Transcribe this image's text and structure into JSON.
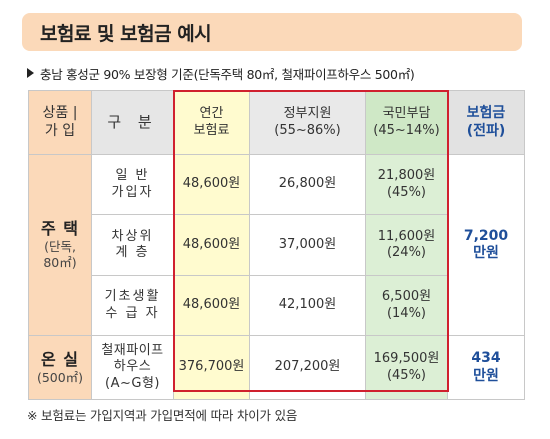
{
  "title": "보험료 및 보험금 예시",
  "subtitle": "충남 홍성군 90% 보장형 기준(단독주택 80㎡, 철재파이프하우스 500㎡)",
  "header": {
    "category_line1": "상품 |",
    "category_line2": "가 입",
    "gubun": "구 분",
    "premium_line1": "연간",
    "premium_line2": "보험료",
    "gov_line1": "정부지원",
    "gov_line2": "(55~86%)",
    "people_line1": "국민부담",
    "people_line2": "(45~14%)",
    "insured_line1": "보험금",
    "insured_line2": "(전파)"
  },
  "house": {
    "label": "주 택",
    "sub1": "(단독,",
    "sub2": "80㎡)",
    "insured_line1": "7,200",
    "insured_line2": "만원",
    "rows": [
      {
        "line1": "일 반",
        "line2": "가입자",
        "premium": "48,600원",
        "gov": "26,800원",
        "people": "21,800원",
        "people_pct": "(45%)"
      },
      {
        "line1": "차상위",
        "line2": "계 층",
        "premium": "48,600원",
        "gov": "37,000원",
        "people": "11,600원",
        "people_pct": "(24%)"
      },
      {
        "line1": "기초생활",
        "line2": "수 급 자",
        "premium": "48,600원",
        "gov": "42,100원",
        "people": "6,500원",
        "people_pct": "(14%)"
      }
    ]
  },
  "greenhouse": {
    "label": "온 실",
    "sub": "(500㎡)",
    "line1": "철재파이프",
    "line2": "하우스",
    "line3": "(A~G형)",
    "premium": "376,700원",
    "gov": "207,200원",
    "people": "169,500원",
    "people_pct": "(45%)",
    "insured_line1": "434",
    "insured_line2": "만원"
  },
  "footnote": "※ 보험료는 가입지역과 가입면적에 따라 차이가 있음",
  "colors": {
    "title_bg": "#fbd9b9",
    "premium_bg": "#fffbcf",
    "people_bg": "#dcefd5",
    "highlight_border": "#d0202e",
    "insured_text": "#1f4f9a"
  }
}
